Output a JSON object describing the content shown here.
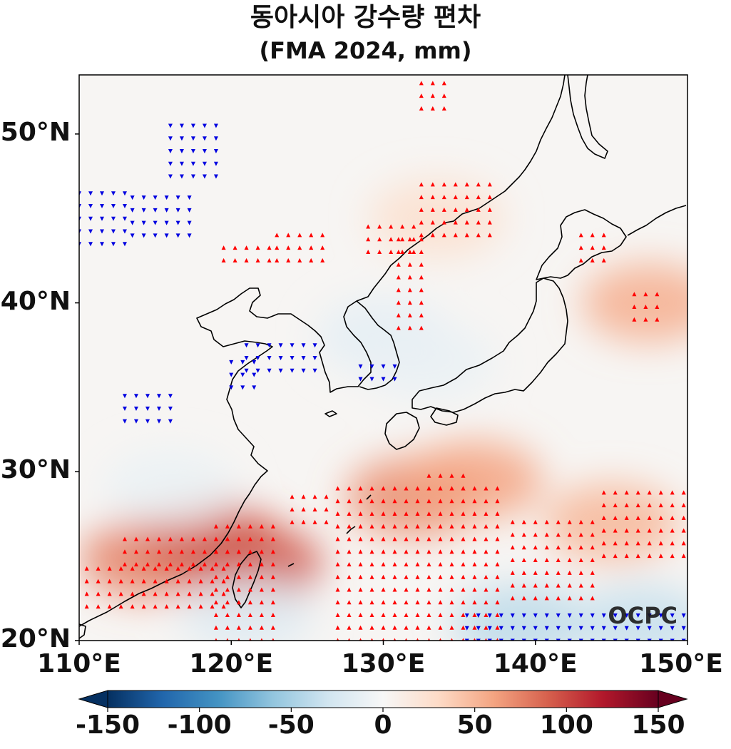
{
  "title": {
    "line1": "동아시아 강수량 편차",
    "line2": "(FMA 2024, mm)"
  },
  "map": {
    "lon_range": [
      110,
      150
    ],
    "lat_range": [
      20,
      53.5
    ],
    "lat_ticks": [
      {
        "value": 50,
        "label": "50°N"
      },
      {
        "value": 40,
        "label": "40°N"
      },
      {
        "value": 30,
        "label": "30°N"
      },
      {
        "value": 20,
        "label": "20°N"
      }
    ],
    "lon_ticks": [
      {
        "value": 110,
        "label": "110°E"
      },
      {
        "value": 120,
        "label": "120°E"
      },
      {
        "value": 130,
        "label": "130°E"
      },
      {
        "value": 140,
        "label": "140°E"
      },
      {
        "value": 150,
        "label": "150°E"
      }
    ],
    "watermark": "OCPC",
    "anomaly_fields_mm": [
      {
        "lon": 114.5,
        "lat": 24.8,
        "value": 75
      },
      {
        "lon": 118.5,
        "lat": 26.0,
        "value": 90
      },
      {
        "lon": 121.5,
        "lat": 24.5,
        "value": 95
      },
      {
        "lon": 132.0,
        "lat": 28.5,
        "value": 70
      },
      {
        "lon": 136.0,
        "lat": 29.5,
        "value": 60
      },
      {
        "lon": 145.0,
        "lat": 27.0,
        "value": 50
      },
      {
        "lon": 147.5,
        "lat": 40.0,
        "value": 55
      },
      {
        "lon": 133.5,
        "lat": 45.0,
        "value": 25
      },
      {
        "lon": 139.0,
        "lat": 21.0,
        "value": -40
      },
      {
        "lon": 147.0,
        "lat": 21.0,
        "value": -35
      },
      {
        "lon": 121.0,
        "lat": 21.5,
        "value": -20
      },
      {
        "lon": 130.0,
        "lat": 38.0,
        "value": -15
      },
      {
        "lon": 133.0,
        "lat": 36.5,
        "value": -10
      },
      {
        "lon": 116.0,
        "lat": 29.0,
        "value": -10
      }
    ],
    "significance_regions": [
      {
        "sign": "positive",
        "lon": [
          110.5,
          120
        ],
        "lat": [
          22,
          24.5
        ]
      },
      {
        "sign": "positive",
        "lon": [
          113,
          121
        ],
        "lat": [
          24.5,
          26.5
        ]
      },
      {
        "sign": "positive",
        "lon": [
          119,
          123
        ],
        "lat": [
          20,
          27
        ]
      },
      {
        "sign": "positive",
        "lon": [
          124,
          126.5
        ],
        "lat": [
          27,
          29
        ]
      },
      {
        "sign": "positive",
        "lon": [
          127,
          138
        ],
        "lat": [
          20,
          29.5
        ]
      },
      {
        "sign": "positive",
        "lon": [
          133,
          135.5
        ],
        "lat": [
          29,
          30
        ]
      },
      {
        "sign": "positive",
        "lon": [
          138.5,
          144
        ],
        "lat": [
          22.5,
          27.5
        ]
      },
      {
        "sign": "positive",
        "lon": [
          144.5,
          150
        ],
        "lat": [
          25,
          29
        ]
      },
      {
        "sign": "positive",
        "lon": [
          132.5,
          137.5
        ],
        "lat": [
          44,
          47
        ]
      },
      {
        "sign": "positive",
        "lon": [
          131,
          133
        ],
        "lat": [
          38.5,
          44
        ]
      },
      {
        "sign": "positive",
        "lon": [
          129,
          132
        ],
        "lat": [
          43,
          44.5
        ]
      },
      {
        "sign": "positive",
        "lon": [
          123,
          126
        ],
        "lat": [
          42.5,
          44
        ]
      },
      {
        "sign": "positive",
        "lon": [
          119.5,
          122.5
        ],
        "lat": [
          42.5,
          43.5
        ]
      },
      {
        "sign": "positive",
        "lon": [
          146.5,
          148
        ],
        "lat": [
          39,
          41
        ]
      },
      {
        "sign": "positive",
        "lon": [
          143,
          145
        ],
        "lat": [
          42.5,
          44.5
        ]
      },
      {
        "sign": "positive",
        "lon": [
          132.5,
          134
        ],
        "lat": [
          51.5,
          53.5
        ]
      },
      {
        "sign": "negative",
        "lon": [
          110,
          113.5
        ],
        "lat": [
          43.5,
          46.5
        ]
      },
      {
        "sign": "negative",
        "lon": [
          113.5,
          117.5
        ],
        "lat": [
          44,
          46.5
        ]
      },
      {
        "sign": "negative",
        "lon": [
          116,
          119.5
        ],
        "lat": [
          47.5,
          51
        ]
      },
      {
        "sign": "negative",
        "lon": [
          121,
          125.5
        ],
        "lat": [
          36,
          38
        ]
      },
      {
        "sign": "negative",
        "lon": [
          120,
          121.5
        ],
        "lat": [
          35,
          36.5
        ]
      },
      {
        "sign": "negative",
        "lon": [
          128.5,
          131
        ],
        "lat": [
          35.5,
          36.5
        ]
      },
      {
        "sign": "negative",
        "lon": [
          113,
          116
        ],
        "lat": [
          33,
          35
        ]
      },
      {
        "sign": "negative",
        "lon": [
          135.5,
          150
        ],
        "lat": [
          20,
          21.5
        ]
      }
    ]
  },
  "colorbar": {
    "min": -150,
    "max": 150,
    "ticks": [
      {
        "value": -150,
        "label": "-150"
      },
      {
        "value": -100,
        "label": "-100"
      },
      {
        "value": -50,
        "label": "-50"
      },
      {
        "value": 0,
        "label": "0"
      },
      {
        "value": 50,
        "label": "50"
      },
      {
        "value": 100,
        "label": "100"
      },
      {
        "value": 150,
        "label": "150"
      }
    ],
    "cmap": "RdBu_r",
    "extend": "both"
  },
  "colors": {
    "positive_marker": "#ff0000",
    "negative_marker": "#0000e0",
    "coastline": "#000000",
    "watermark": "#1a1a1a"
  }
}
